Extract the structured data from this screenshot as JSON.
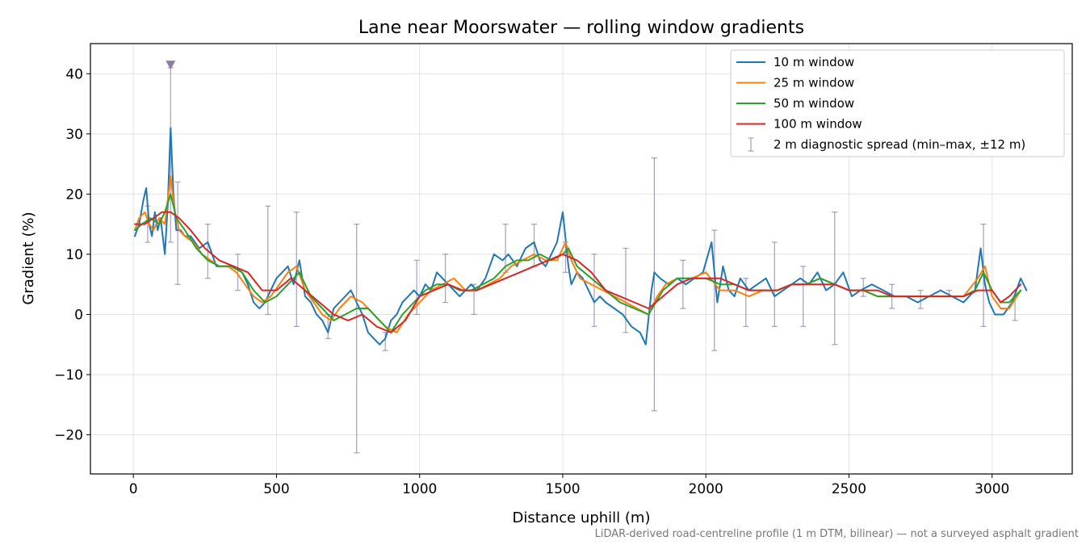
{
  "chart_data": {
    "type": "line",
    "title": "Lane near Moorswater — rolling window gradients",
    "xlabel": "Distance uphill (m)",
    "ylabel": "Gradient (%)",
    "footnote": "LiDAR-derived road-centreline profile (1 m DTM, bilinear) — not a surveyed asphalt gradient",
    "xlim": [
      -150,
      3280
    ],
    "ylim": [
      -26.5,
      45
    ],
    "xticks": [
      0,
      500,
      1000,
      1500,
      2000,
      2500,
      3000
    ],
    "xtick_labels": [
      "0",
      "500",
      "1000",
      "1500",
      "2000",
      "2500",
      "3000"
    ],
    "yticks": [
      -20,
      -10,
      0,
      10,
      20,
      30,
      40
    ],
    "ytick_labels": [
      "−20",
      "−10",
      "0",
      "10",
      "20",
      "30",
      "40"
    ],
    "grid": true,
    "legend_position": "top-right",
    "peak_marker": {
      "x": 130,
      "y": 41.5,
      "color": "#8e7cab"
    },
    "series": [
      {
        "name": "10 m window",
        "color": "#1f77b4",
        "x": [
          5,
          20,
          35,
          45,
          55,
          65,
          75,
          85,
          95,
          110,
          120,
          130,
          140,
          150,
          165,
          180,
          200,
          230,
          260,
          290,
          320,
          350,
          380,
          400,
          420,
          440,
          460,
          480,
          500,
          520,
          540,
          560,
          580,
          600,
          620,
          640,
          660,
          680,
          700,
          720,
          740,
          760,
          780,
          800,
          820,
          840,
          860,
          880,
          900,
          920,
          940,
          960,
          980,
          1000,
          1020,
          1040,
          1060,
          1080,
          1100,
          1120,
          1140,
          1160,
          1180,
          1200,
          1230,
          1260,
          1290,
          1310,
          1340,
          1370,
          1400,
          1420,
          1440,
          1460,
          1480,
          1500,
          1520,
          1530,
          1550,
          1570,
          1590,
          1610,
          1630,
          1650,
          1680,
          1710,
          1740,
          1770,
          1790,
          1810,
          1820,
          1840,
          1870,
          1900,
          1930,
          1960,
          1990,
          2020,
          2040,
          2060,
          2080,
          2100,
          2120,
          2150,
          2180,
          2210,
          2240,
          2270,
          2300,
          2330,
          2360,
          2390,
          2420,
          2450,
          2480,
          2510,
          2540,
          2580,
          2620,
          2660,
          2700,
          2740,
          2780,
          2820,
          2860,
          2900,
          2940,
          2960,
          2975,
          2990,
          3010,
          3040,
          3070,
          3100,
          3120
        ],
        "y": [
          13,
          15,
          19,
          21,
          15,
          13,
          17,
          14,
          16,
          10,
          18,
          31,
          20,
          14,
          14,
          13,
          13,
          11,
          12,
          8,
          8,
          8,
          7,
          5,
          2,
          1,
          2,
          4,
          6,
          7,
          8,
          5,
          9,
          3,
          2,
          0,
          -1,
          -3,
          1,
          2,
          3,
          4,
          2,
          0,
          -3,
          -4,
          -5,
          -4,
          -1,
          0,
          2,
          3,
          4,
          3,
          5,
          4,
          7,
          6,
          5,
          4,
          3,
          4,
          5,
          4,
          6,
          10,
          9,
          10,
          8,
          11,
          12,
          9,
          8,
          10,
          12,
          17,
          8,
          5,
          7,
          6,
          4,
          2,
          3,
          2,
          1,
          0,
          -2,
          -3,
          -5,
          4,
          7,
          6,
          5,
          6,
          5,
          6,
          7,
          12,
          2,
          8,
          4,
          3,
          6,
          4,
          5,
          6,
          3,
          4,
          5,
          6,
          5,
          7,
          4,
          5,
          7,
          3,
          4,
          5,
          4,
          3,
          3,
          2,
          3,
          4,
          3,
          2,
          4,
          11,
          5,
          2,
          0,
          0,
          2,
          6,
          4
        ]
      },
      {
        "name": "25 m window",
        "color": "#ff7f0e",
        "x": [
          5,
          20,
          40,
          55,
          70,
          90,
          110,
          130,
          145,
          160,
          180,
          210,
          240,
          270,
          300,
          330,
          360,
          390,
          420,
          450,
          480,
          510,
          540,
          570,
          600,
          630,
          660,
          690,
          720,
          760,
          800,
          840,
          880,
          920,
          960,
          1000,
          1040,
          1080,
          1120,
          1160,
          1200,
          1240,
          1280,
          1320,
          1360,
          1400,
          1440,
          1480,
          1510,
          1530,
          1560,
          1600,
          1640,
          1680,
          1720,
          1760,
          1800,
          1830,
          1860,
          1900,
          1950,
          2000,
          2050,
          2100,
          2150,
          2200,
          2250,
          2300,
          2350,
          2400,
          2450,
          2500,
          2550,
          2600,
          2650,
          2700,
          2750,
          2800,
          2850,
          2900,
          2950,
          2975,
          3000,
          3030,
          3060,
          3100
        ],
        "y": [
          14,
          16,
          17,
          15,
          14,
          16,
          15,
          23,
          17,
          14,
          13,
          12,
          10,
          9,
          8,
          8,
          7,
          5,
          3,
          2,
          3,
          5,
          7,
          8,
          4,
          2,
          0,
          -1,
          1,
          3,
          2,
          0,
          -2,
          -3,
          0,
          2,
          4,
          5,
          6,
          4,
          4,
          5,
          6,
          8,
          9,
          10,
          9,
          9,
          12,
          9,
          6,
          5,
          4,
          3,
          2,
          1,
          0,
          3,
          5,
          6,
          6,
          7,
          4,
          4,
          3,
          4,
          4,
          5,
          5,
          6,
          5,
          4,
          4,
          3,
          3,
          3,
          3,
          3,
          3,
          3,
          6,
          8,
          3,
          1,
          1,
          4
        ]
      },
      {
        "name": "50 m window",
        "color": "#2ca02c",
        "x": [
          5,
          30,
          60,
          90,
          110,
          130,
          150,
          180,
          220,
          260,
          300,
          340,
          380,
          420,
          460,
          500,
          540,
          580,
          620,
          660,
          700,
          740,
          780,
          820,
          860,
          900,
          940,
          980,
          1020,
          1060,
          1100,
          1140,
          1180,
          1220,
          1260,
          1300,
          1340,
          1380,
          1420,
          1460,
          1500,
          1520,
          1550,
          1600,
          1650,
          1700,
          1750,
          1800,
          1850,
          1900,
          1950,
          2000,
          2050,
          2100,
          2150,
          2200,
          2250,
          2300,
          2350,
          2400,
          2450,
          2500,
          2550,
          2600,
          2650,
          2700,
          2750,
          2800,
          2850,
          2900,
          2940,
          2970,
          3000,
          3030,
          3060,
          3100
        ],
        "y": [
          14,
          15,
          16,
          15,
          17,
          20,
          16,
          14,
          11,
          9,
          8,
          8,
          7,
          4,
          2,
          3,
          5,
          7,
          3,
          1,
          -1,
          0,
          1,
          1,
          -1,
          -3,
          0,
          2,
          4,
          5,
          5,
          4,
          4,
          5,
          6,
          8,
          9,
          9,
          10,
          9,
          10,
          11,
          8,
          6,
          4,
          2,
          1,
          0,
          4,
          6,
          6,
          6,
          5,
          5,
          4,
          4,
          4,
          5,
          5,
          6,
          5,
          4,
          4,
          3,
          3,
          3,
          3,
          3,
          3,
          3,
          4,
          7,
          4,
          2,
          2,
          4
        ]
      },
      {
        "name": "100 m window",
        "color": "#d62728",
        "x": [
          5,
          40,
          70,
          100,
          130,
          160,
          200,
          250,
          300,
          350,
          400,
          450,
          500,
          550,
          600,
          650,
          700,
          750,
          800,
          850,
          900,
          950,
          1000,
          1050,
          1100,
          1150,
          1200,
          1250,
          1300,
          1350,
          1400,
          1450,
          1500,
          1550,
          1600,
          1650,
          1700,
          1750,
          1800,
          1850,
          1900,
          1950,
          2000,
          2050,
          2100,
          2150,
          2200,
          2250,
          2300,
          2350,
          2400,
          2450,
          2500,
          2550,
          2600,
          2650,
          2700,
          2750,
          2800,
          2850,
          2900,
          2950,
          3000,
          3030,
          3060,
          3100
        ],
        "y": [
          15,
          15,
          16,
          17,
          17,
          16,
          14,
          11,
          9,
          8,
          7,
          4,
          4,
          6,
          4,
          2,
          0,
          -1,
          0,
          -2,
          -3,
          -1,
          3,
          4,
          5,
          4,
          4,
          5,
          6,
          7,
          8,
          9,
          10,
          9,
          7,
          4,
          3,
          2,
          1,
          3,
          5,
          6,
          6,
          6,
          5,
          4,
          4,
          4,
          5,
          5,
          5,
          5,
          4,
          4,
          4,
          3,
          3,
          3,
          3,
          3,
          3,
          4,
          4,
          2,
          3,
          5
        ]
      }
    ],
    "diagnostic_spread": {
      "name": "2 m diagnostic spread (min–max, ±12 m)",
      "color": "#8e7cab",
      "points": [
        {
          "x": 50,
          "low": 12,
          "high": 18
        },
        {
          "x": 130,
          "low": 12,
          "high": 41
        },
        {
          "x": 155,
          "low": 5,
          "high": 22
        },
        {
          "x": 260,
          "low": 6,
          "high": 15
        },
        {
          "x": 365,
          "low": 4,
          "high": 10
        },
        {
          "x": 470,
          "low": 0,
          "high": 18
        },
        {
          "x": 570,
          "low": -2,
          "high": 17
        },
        {
          "x": 680,
          "low": -4,
          "high": 0
        },
        {
          "x": 780,
          "low": -23,
          "high": 15
        },
        {
          "x": 880,
          "low": -6,
          "high": -3
        },
        {
          "x": 990,
          "low": 0,
          "high": 9
        },
        {
          "x": 1090,
          "low": 2,
          "high": 10
        },
        {
          "x": 1190,
          "low": 0,
          "high": 5
        },
        {
          "x": 1300,
          "low": 7,
          "high": 15
        },
        {
          "x": 1400,
          "low": 8,
          "high": 15
        },
        {
          "x": 1510,
          "low": 7,
          "high": 12
        },
        {
          "x": 1610,
          "low": -2,
          "high": 10
        },
        {
          "x": 1720,
          "low": -3,
          "high": 11
        },
        {
          "x": 1820,
          "low": -16,
          "high": 26
        },
        {
          "x": 1920,
          "low": 1,
          "high": 9
        },
        {
          "x": 2030,
          "low": -6,
          "high": 14
        },
        {
          "x": 2140,
          "low": -2,
          "high": 6
        },
        {
          "x": 2240,
          "low": -2,
          "high": 12
        },
        {
          "x": 2340,
          "low": -2,
          "high": 8
        },
        {
          "x": 2450,
          "low": -5,
          "high": 17
        },
        {
          "x": 2550,
          "low": 3,
          "high": 6
        },
        {
          "x": 2650,
          "low": 1,
          "high": 5
        },
        {
          "x": 2750,
          "low": 1,
          "high": 4
        },
        {
          "x": 2850,
          "low": 3,
          "high": 4
        },
        {
          "x": 2970,
          "low": -2,
          "high": 15
        },
        {
          "x": 3080,
          "low": -1,
          "high": 3
        }
      ]
    }
  }
}
